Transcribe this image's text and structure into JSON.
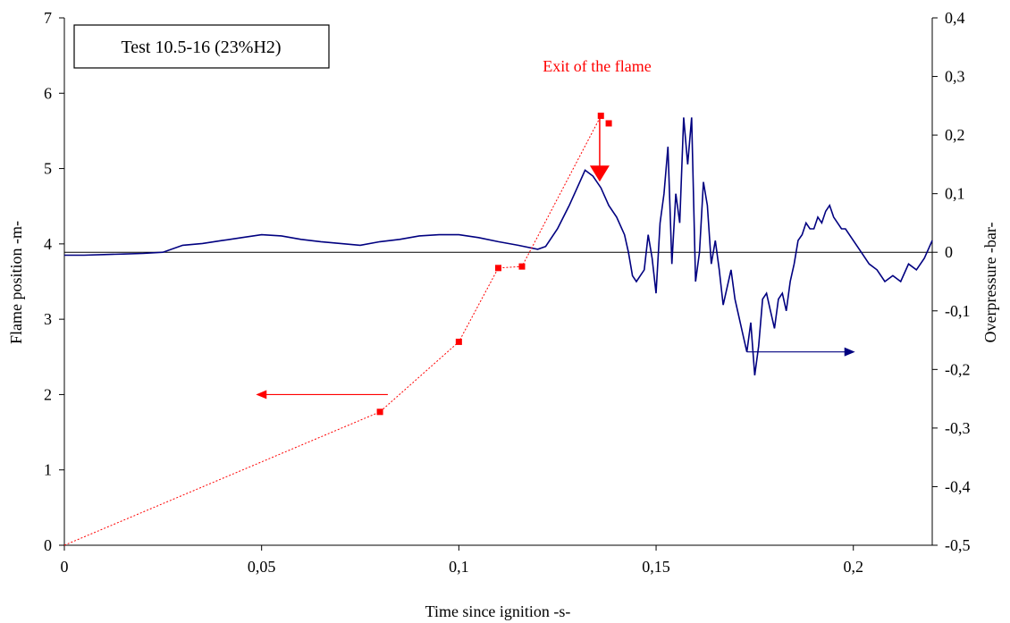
{
  "chart_data": {
    "type": "line",
    "title": "",
    "xlabel": "Time since ignition -s-",
    "ylabel_left": "Flame position -m-",
    "ylabel_right": "Overpressure -bar-",
    "xlim": [
      0,
      0.22
    ],
    "ylim_left": [
      0,
      7
    ],
    "ylim_right": [
      -0.5,
      0.4
    ],
    "x_ticks": [
      "0",
      "0,05",
      "0,1",
      "0,15",
      "0,2"
    ],
    "x_tick_values": [
      0,
      0.05,
      0.1,
      0.15,
      0.2
    ],
    "left_ticks": [
      "0",
      "1",
      "2",
      "3",
      "4",
      "5",
      "6",
      "7"
    ],
    "left_tick_values": [
      0,
      1,
      2,
      3,
      4,
      5,
      6,
      7
    ],
    "right_ticks": [
      "-0,5",
      "-0,4",
      "-0,3",
      "-0,2",
      "-0,1",
      "0",
      "0,1",
      "0,2",
      "0,3",
      "0,4"
    ],
    "right_tick_values": [
      -0.5,
      -0.4,
      -0.3,
      -0.2,
      -0.1,
      0,
      0.1,
      0.2,
      0.3,
      0.4
    ],
    "grid": false,
    "legend_box": "Test 10.5-16 (23%H2)",
    "annotation": "Exit of the flame",
    "colors": {
      "flame": "#ff0000",
      "pressure": "#000080",
      "zero_line": "#000000"
    },
    "flame_points": {
      "axis": "left",
      "x": [
        0.08,
        0.1,
        0.11,
        0.116,
        0.136,
        0.138
      ],
      "y": [
        1.77,
        2.7,
        3.68,
        3.7,
        5.7,
        5.6
      ]
    },
    "flame_trend": {
      "axis": "left",
      "x": [
        0.0,
        0.08,
        0.1,
        0.11,
        0.116,
        0.136
      ],
      "y": [
        0.0,
        1.77,
        2.7,
        3.68,
        3.7,
        5.7
      ]
    },
    "overpressure": {
      "axis": "right",
      "x": [
        0.0,
        0.005,
        0.01,
        0.015,
        0.02,
        0.025,
        0.03,
        0.035,
        0.04,
        0.045,
        0.05,
        0.055,
        0.06,
        0.065,
        0.07,
        0.075,
        0.08,
        0.085,
        0.09,
        0.095,
        0.1,
        0.105,
        0.11,
        0.115,
        0.12,
        0.122,
        0.125,
        0.128,
        0.13,
        0.132,
        0.134,
        0.136,
        0.138,
        0.14,
        0.142,
        0.143,
        0.144,
        0.145,
        0.146,
        0.147,
        0.148,
        0.149,
        0.15,
        0.151,
        0.152,
        0.153,
        0.154,
        0.155,
        0.156,
        0.157,
        0.158,
        0.159,
        0.16,
        0.161,
        0.162,
        0.163,
        0.164,
        0.165,
        0.166,
        0.167,
        0.168,
        0.169,
        0.17,
        0.171,
        0.172,
        0.173,
        0.174,
        0.175,
        0.176,
        0.177,
        0.178,
        0.179,
        0.18,
        0.181,
        0.182,
        0.183,
        0.184,
        0.185,
        0.186,
        0.187,
        0.188,
        0.189,
        0.19,
        0.191,
        0.192,
        0.193,
        0.194,
        0.195,
        0.196,
        0.197,
        0.198,
        0.2,
        0.202,
        0.204,
        0.206,
        0.208,
        0.21,
        0.212,
        0.214,
        0.216,
        0.218,
        0.22
      ],
      "y": [
        -0.005,
        -0.005,
        -0.004,
        -0.003,
        -0.002,
        0.0,
        0.012,
        0.015,
        0.02,
        0.025,
        0.03,
        0.028,
        0.022,
        0.018,
        0.015,
        0.012,
        0.018,
        0.022,
        0.028,
        0.03,
        0.03,
        0.025,
        0.018,
        0.012,
        0.005,
        0.01,
        0.04,
        0.08,
        0.11,
        0.14,
        0.13,
        0.11,
        0.08,
        0.06,
        0.03,
        0.0,
        -0.04,
        -0.05,
        -0.04,
        -0.03,
        0.03,
        -0.01,
        -0.07,
        0.05,
        0.1,
        0.18,
        -0.02,
        0.1,
        0.05,
        0.23,
        0.15,
        0.23,
        -0.05,
        0.0,
        0.12,
        0.08,
        -0.02,
        0.02,
        -0.03,
        -0.09,
        -0.06,
        -0.03,
        -0.08,
        -0.11,
        -0.14,
        -0.17,
        -0.12,
        -0.21,
        -0.16,
        -0.08,
        -0.07,
        -0.1,
        -0.13,
        -0.08,
        -0.07,
        -0.1,
        -0.05,
        -0.02,
        0.02,
        0.03,
        0.05,
        0.04,
        0.04,
        0.06,
        0.05,
        0.07,
        0.08,
        0.06,
        0.05,
        0.04,
        0.04,
        0.02,
        0.0,
        -0.02,
        -0.03,
        -0.05,
        -0.04,
        -0.05,
        -0.02,
        -0.03,
        -0.01,
        0.02
      ]
    },
    "arrows": [
      {
        "name": "flame-axis-arrow",
        "x1": 0.082,
        "y1": 2.0,
        "x2": 0.049,
        "y2": 2.0,
        "axis": "left",
        "color": "#ff0000"
      },
      {
        "name": "pressure-axis-arrow",
        "x1": 0.173,
        "y1": -0.17,
        "x2": 0.2,
        "y2": -0.17,
        "axis": "right",
        "color": "#000080"
      },
      {
        "name": "flame-exit-arrow",
        "x1": 0.1357,
        "y1": 5.7,
        "x2": 0.1357,
        "y2": 4.85,
        "axis": "left",
        "color": "#ff0000"
      }
    ]
  }
}
